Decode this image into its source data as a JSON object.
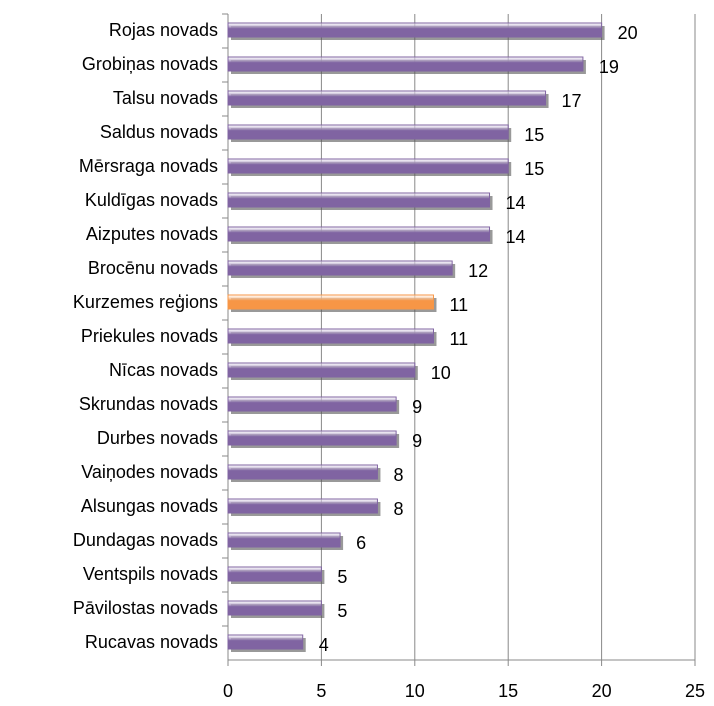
{
  "chart_data": {
    "type": "hbar",
    "categories": [
      "Rojas novads",
      "Grobiņas novads",
      "Talsu novads",
      "Saldus novads",
      "Mērsraga novads",
      "Kuldīgas novads",
      "Aizputes novads",
      "Brocēnu novads",
      "Kurzemes reģions",
      "Priekules novads",
      "Nīcas novads",
      "Skrundas novads",
      "Durbes novads",
      "Vaiņodes novads",
      "Alsungas novads",
      "Dundagas novads",
      "Ventspils novads",
      "Pāvilostas novads",
      "Rucavas novads"
    ],
    "values": [
      20,
      19,
      17,
      15,
      15,
      14,
      14,
      12,
      11,
      11,
      10,
      9,
      9,
      8,
      8,
      6,
      5,
      5,
      4
    ],
    "colors": [
      "#8064a2",
      "#8064a2",
      "#8064a2",
      "#8064a2",
      "#8064a2",
      "#8064a2",
      "#8064a2",
      "#8064a2",
      "#f79646",
      "#8064a2",
      "#8064a2",
      "#8064a2",
      "#8064a2",
      "#8064a2",
      "#8064a2",
      "#8064a2",
      "#8064a2",
      "#8064a2",
      "#8064a2"
    ],
    "xlim": [
      0,
      25
    ],
    "xticks": [
      0,
      5,
      10,
      15,
      20,
      25
    ],
    "grid": true
  }
}
